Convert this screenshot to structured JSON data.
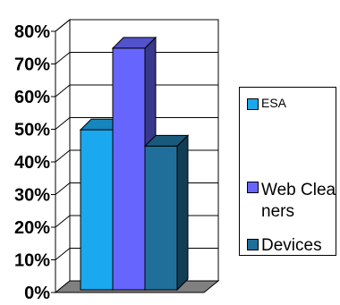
{
  "chart_data": {
    "type": "bar",
    "categories": [
      ""
    ],
    "series": [
      {
        "name": "ESA",
        "values": [
          49
        ],
        "color": "#1aa8ee"
      },
      {
        "name": "Web Cleaners",
        "values": [
          74
        ],
        "color": "#6666ff"
      },
      {
        "name": "Devices",
        "values": [
          44
        ],
        "color": "#1f6f9a"
      }
    ],
    "title": "",
    "xlabel": "",
    "ylabel": "",
    "ylim": [
      0,
      80
    ],
    "yticks": [
      "0%",
      "10%",
      "20%",
      "30%",
      "40%",
      "50%",
      "60%",
      "70%",
      "80%"
    ],
    "grid": true,
    "legend_position": "right",
    "three_d": true
  },
  "legend": {
    "items": [
      {
        "label": "ESA"
      },
      {
        "label": "Web Cleaners"
      },
      {
        "label": "Devices"
      }
    ]
  }
}
